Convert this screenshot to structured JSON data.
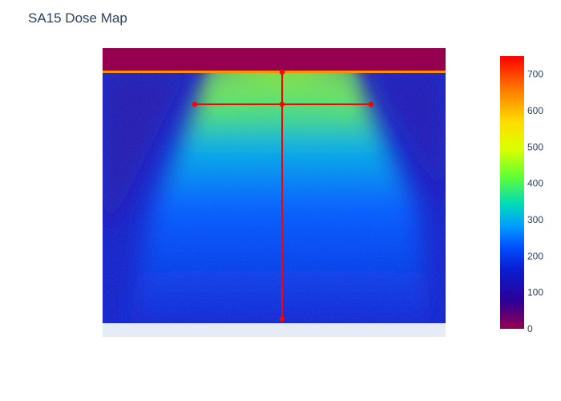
{
  "chart_data": {
    "type": "heatmap",
    "title": "SA15 Dose Map",
    "xlabel": "",
    "ylabel": "",
    "colorbar": {
      "range": [
        0,
        750
      ],
      "ticks": [
        0,
        100,
        200,
        300,
        400,
        500,
        600,
        700
      ],
      "tick_labels": [
        "0",
        "100",
        "200",
        "300",
        "400",
        "500",
        "600",
        "700"
      ],
      "colorscale": [
        [
          0.0,
          "#960050"
        ],
        [
          0.1,
          "#2d0096"
        ],
        [
          0.22,
          "#0a1ed2"
        ],
        [
          0.3,
          "#0050ff"
        ],
        [
          0.38,
          "#00a0ff"
        ],
        [
          0.46,
          "#00dcb4"
        ],
        [
          0.56,
          "#64ff32"
        ],
        [
          0.66,
          "#dcff00"
        ],
        [
          0.76,
          "#ffdc00"
        ],
        [
          0.88,
          "#ff7800"
        ],
        [
          1.0,
          "#ff0000"
        ]
      ]
    },
    "dose_map": {
      "header_dose": 0,
      "background_dose": 140,
      "beam_peak_dose": 520,
      "top_edge_dose": 640,
      "no_data_strip": true
    },
    "crosshair": {
      "color": "#ff0000",
      "vertical_line": "center top to bottom",
      "horizontal_line": "across beam near top",
      "markers": 5
    },
    "grid": false,
    "legend": "none"
  }
}
